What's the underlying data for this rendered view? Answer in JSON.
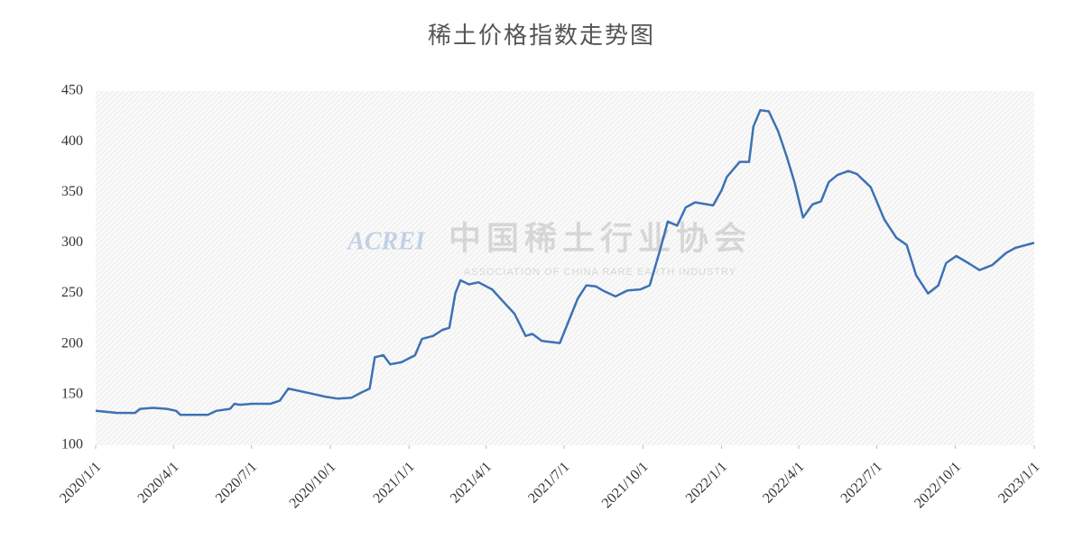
{
  "chart_data": {
    "type": "line",
    "title": "稀土价格指数走势图",
    "watermark": {
      "logo": "ACREI",
      "name": "中国稀土行业协会",
      "english": "ASSOCIATION OF CHINA RARE EARTH INDUSTRY"
    },
    "x": [
      "2020/1/1",
      "2020/1/26",
      "2020/2/16",
      "2020/2/22",
      "2020/3/8",
      "2020/3/24",
      "2020/4/4",
      "2020/4/9",
      "2020/5/11",
      "2020/5/21",
      "2020/6/6",
      "2020/6/11",
      "2020/6/17",
      "2020/7/2",
      "2020/7/23",
      "2020/8/3",
      "2020/8/13",
      "2020/8/24",
      "2020/9/9",
      "2020/9/25",
      "2020/10/10",
      "2020/10/26",
      "2020/11/6",
      "2020/11/16",
      "2020/11/22",
      "2020/12/2",
      "2020/12/10",
      "2020/12/23",
      "2021/1/8",
      "2021/1/16",
      "2021/1/29",
      "2021/2/9",
      "2021/2/17",
      "2021/2/24",
      "2021/3/2",
      "2021/3/12",
      "2021/3/23",
      "2021/4/8",
      "2021/4/23",
      "2021/5/4",
      "2021/5/17",
      "2021/5/25",
      "2021/6/5",
      "2021/6/26",
      "2021/7/6",
      "2021/7/17",
      "2021/7/27",
      "2021/8/7",
      "2021/8/15",
      "2021/8/30",
      "2021/9/13",
      "2021/9/28",
      "2021/10/9",
      "2021/10/20",
      "2021/10/30",
      "2021/11/10",
      "2021/11/20",
      "2021/12/1",
      "2021/12/22",
      "2022/1/1",
      "2022/1/7",
      "2022/1/17",
      "2022/1/22",
      "2022/2/2",
      "2022/2/7",
      "2022/2/15",
      "2022/2/25",
      "2022/3/8",
      "2022/3/18",
      "2022/3/27",
      "2022/4/6",
      "2022/4/17",
      "2022/4/27",
      "2022/5/6",
      "2022/5/16",
      "2022/5/29",
      "2022/6/8",
      "2022/6/24",
      "2022/7/10",
      "2022/7/24",
      "2022/8/5",
      "2022/8/16",
      "2022/8/30",
      "2022/9/11",
      "2022/9/20",
      "2022/10/2",
      "2022/10/18",
      "2022/10/29",
      "2022/11/13",
      "2022/11/29",
      "2022/12/10",
      "2023/1/1"
    ],
    "series": [
      {
        "name": "稀土价格指数",
        "color": "#3d72b4",
        "values": [
          134,
          132,
          132,
          136,
          137,
          136,
          134,
          130,
          130,
          134,
          136,
          141,
          140,
          141,
          141,
          144,
          156,
          154,
          151,
          148,
          146,
          147,
          152,
          156,
          187,
          189,
          180,
          182,
          189,
          205,
          208,
          214,
          216,
          250,
          263,
          259,
          261,
          254,
          240,
          230,
          208,
          210,
          203,
          201,
          222,
          245,
          258,
          257,
          253,
          247,
          253,
          254,
          258,
          290,
          321,
          317,
          335,
          340,
          337,
          352,
          365,
          375,
          380,
          380,
          415,
          431,
          430,
          410,
          385,
          360,
          325,
          338,
          341,
          360,
          367,
          371,
          368,
          355,
          323,
          305,
          298,
          268,
          250,
          258,
          280,
          287,
          279,
          273,
          278,
          290,
          295,
          300
        ]
      }
    ],
    "xlim": [
      "2020/1/1",
      "2023/1/1"
    ],
    "xticks": [
      "2020/1/1",
      "2020/4/1",
      "2020/7/1",
      "2020/10/1",
      "2021/1/1",
      "2021/4/1",
      "2021/7/1",
      "2021/10/1",
      "2022/1/1",
      "2022/4/1",
      "2022/7/1",
      "2022/10/1",
      "2023/1/1"
    ],
    "ylim": [
      100,
      450
    ],
    "yticks": [
      100,
      150,
      200,
      250,
      300,
      350,
      400,
      450
    ],
    "grid": false
  }
}
